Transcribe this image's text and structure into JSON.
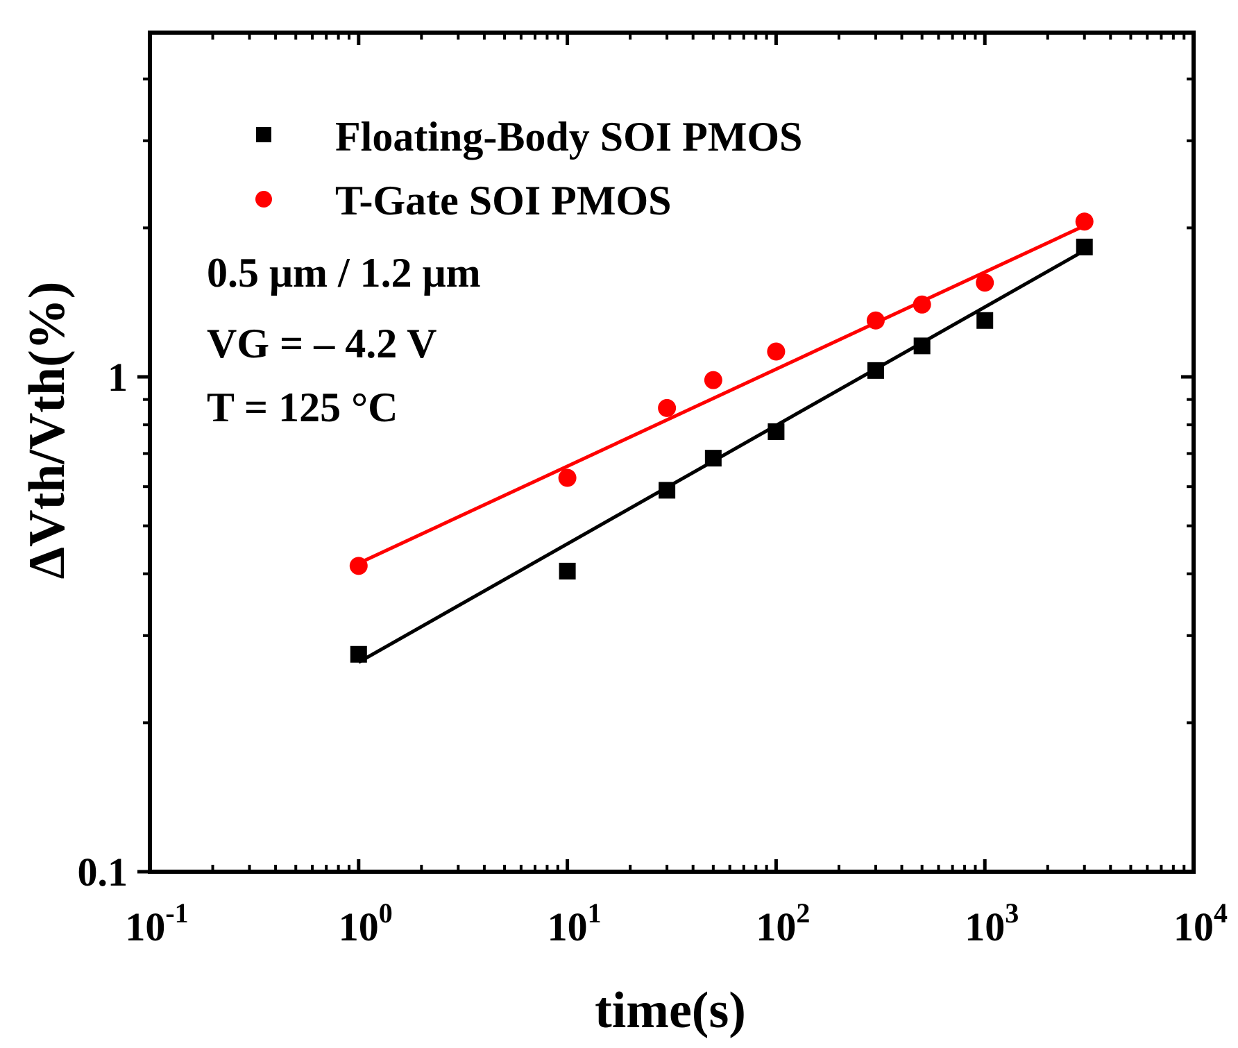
{
  "chart_data": {
    "type": "scatter",
    "xlabel": "time(s)",
    "ylabel": "ΔVth/Vth(%)",
    "xscale": "log",
    "yscale": "log",
    "xlim": [
      0.1,
      10000
    ],
    "ylim": [
      0.1,
      6
    ],
    "x_tick_labels": [
      {
        "value": 0.1,
        "base": "10",
        "exp": "-1"
      },
      {
        "value": 1,
        "base": "10",
        "exp": "0"
      },
      {
        "value": 10,
        "base": "10",
        "exp": "1"
      },
      {
        "value": 100,
        "base": "10",
        "exp": "2"
      },
      {
        "value": 1000,
        "base": "10",
        "exp": "3"
      },
      {
        "value": 10000,
        "base": "10",
        "exp": "4"
      }
    ],
    "y_tick_labels": [
      {
        "value": 0.1,
        "label": "0.1"
      },
      {
        "value": 1,
        "label": "1"
      }
    ],
    "grid": false,
    "legend_position": "top-left",
    "series": [
      {
        "name": "Floating-Body SOI PMOS",
        "marker": "square",
        "color": "#000000",
        "x": [
          1,
          10,
          30,
          50,
          100,
          300,
          500,
          1000,
          3000
        ],
        "y": [
          0.275,
          0.405,
          0.59,
          0.685,
          0.775,
          1.03,
          1.155,
          1.3,
          1.83
        ],
        "fit": {
          "x": [
            1,
            3000
          ],
          "y": [
            0.265,
            1.8
          ]
        }
      },
      {
        "name": "T-Gate SOI PMOS",
        "marker": "circle",
        "color": "#ff0000",
        "x": [
          1,
          10,
          30,
          50,
          100,
          300,
          500,
          1000,
          3000
        ],
        "y": [
          0.415,
          0.625,
          0.865,
          0.985,
          1.125,
          1.3,
          1.4,
          1.55,
          2.06
        ],
        "fit": {
          "x": [
            1,
            3000
          ],
          "y": [
            0.42,
            2.02
          ]
        }
      }
    ],
    "annotations": [
      "0.5 μm / 1.2 μm",
      "VG = – 4.2 V",
      "T = 125 °C"
    ]
  }
}
